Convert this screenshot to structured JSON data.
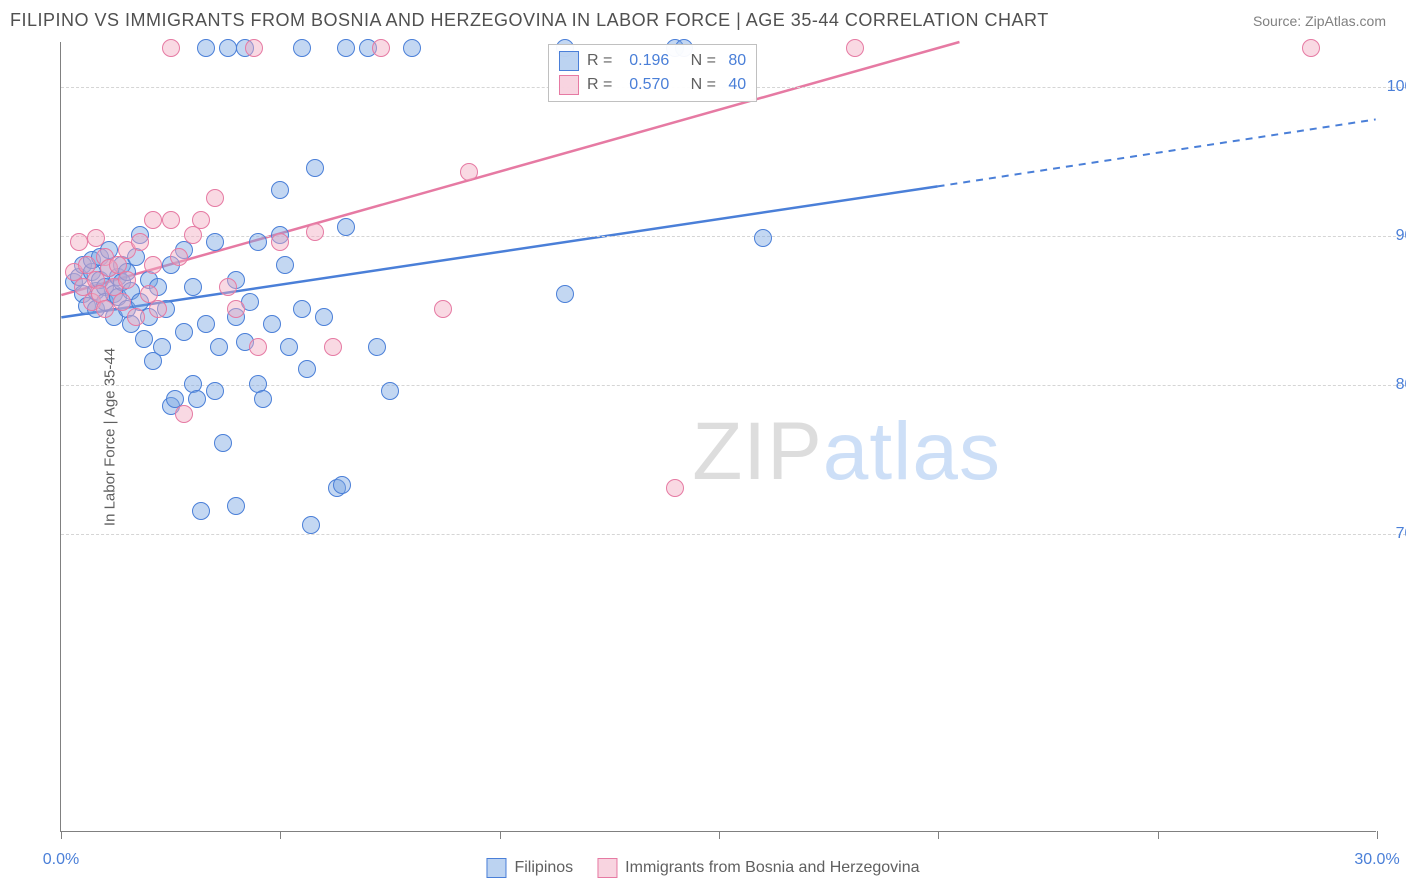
{
  "title": "FILIPINO VS IMMIGRANTS FROM BOSNIA AND HERZEGOVINA IN LABOR FORCE | AGE 35-44 CORRELATION CHART",
  "source": "Source: ZipAtlas.com",
  "y_axis_title": "In Labor Force | Age 35-44",
  "watermark": {
    "part1": "ZIP",
    "part2": "atlas"
  },
  "chart": {
    "type": "scatter",
    "xlim": [
      0,
      30
    ],
    "ylim": [
      50,
      103
    ],
    "xticks": [
      0,
      30
    ],
    "xtick_labels": [
      "0.0%",
      "30.0%"
    ],
    "xtick_minor": [
      5,
      10,
      15,
      20,
      25
    ],
    "yticks": [
      70,
      80,
      90,
      100
    ],
    "ytick_labels": [
      "70.0%",
      "80.0%",
      "90.0%",
      "100.0%"
    ],
    "grid_color": "#d5d5d5",
    "axis_color": "#808080",
    "background": "#ffffff"
  },
  "series": [
    {
      "key": "filipinos",
      "label": "Filipinos",
      "color_fill": "rgba(122,167,227,0.45)",
      "color_stroke": "#4a7fd8",
      "marker_size": 18,
      "R": "0.196",
      "N": "80",
      "trend": {
        "x1": 0,
        "y1": 84.5,
        "x2_solid": 20,
        "y2_solid": 93.3,
        "x2": 30,
        "y2": 97.8,
        "width": 2.5
      },
      "points": [
        [
          0.3,
          86.8
        ],
        [
          0.4,
          87.2
        ],
        [
          0.5,
          86.0
        ],
        [
          0.5,
          88.0
        ],
        [
          0.6,
          85.2
        ],
        [
          0.7,
          87.5
        ],
        [
          0.7,
          88.3
        ],
        [
          0.8,
          86.2
        ],
        [
          0.8,
          85.0
        ],
        [
          0.9,
          87.0
        ],
        [
          0.9,
          88.5
        ],
        [
          1.0,
          86.5
        ],
        [
          1.0,
          85.5
        ],
        [
          1.1,
          87.8
        ],
        [
          1.1,
          89.0
        ],
        [
          1.2,
          86.0
        ],
        [
          1.2,
          84.5
        ],
        [
          1.3,
          87.2
        ],
        [
          1.3,
          85.8
        ],
        [
          1.4,
          88.0
        ],
        [
          1.4,
          86.8
        ],
        [
          1.5,
          85.0
        ],
        [
          1.5,
          87.5
        ],
        [
          1.6,
          84.0
        ],
        [
          1.6,
          86.2
        ],
        [
          1.7,
          88.5
        ],
        [
          1.8,
          85.5
        ],
        [
          1.8,
          90.0
        ],
        [
          1.9,
          83.0
        ],
        [
          2.0,
          87.0
        ],
        [
          2.0,
          84.5
        ],
        [
          2.1,
          81.5
        ],
        [
          2.2,
          86.5
        ],
        [
          2.3,
          82.5
        ],
        [
          2.4,
          85.0
        ],
        [
          2.5,
          78.5
        ],
        [
          2.5,
          88.0
        ],
        [
          2.6,
          79.0
        ],
        [
          2.8,
          83.5
        ],
        [
          2.8,
          89.0
        ],
        [
          3.0,
          80.0
        ],
        [
          3.0,
          86.5
        ],
        [
          3.1,
          79.0
        ],
        [
          3.2,
          71.5
        ],
        [
          3.3,
          84.0
        ],
        [
          3.3,
          102.5
        ],
        [
          3.5,
          89.5
        ],
        [
          3.5,
          79.5
        ],
        [
          3.6,
          82.5
        ],
        [
          3.7,
          76.0
        ],
        [
          3.8,
          102.5
        ],
        [
          4.0,
          87.0
        ],
        [
          4.0,
          84.5
        ],
        [
          4.0,
          71.8
        ],
        [
          4.2,
          82.8
        ],
        [
          4.2,
          102.5
        ],
        [
          4.3,
          85.5
        ],
        [
          4.5,
          89.5
        ],
        [
          4.5,
          80.0
        ],
        [
          4.6,
          79.0
        ],
        [
          4.8,
          84.0
        ],
        [
          5.0,
          93.0
        ],
        [
          5.0,
          90.0
        ],
        [
          5.1,
          88.0
        ],
        [
          5.2,
          82.5
        ],
        [
          5.5,
          102.5
        ],
        [
          5.5,
          85.0
        ],
        [
          5.6,
          81.0
        ],
        [
          5.7,
          70.5
        ],
        [
          5.8,
          94.5
        ],
        [
          6.0,
          84.5
        ],
        [
          6.3,
          73.0
        ],
        [
          6.4,
          73.2
        ],
        [
          6.5,
          102.5
        ],
        [
          6.5,
          90.5
        ],
        [
          7.0,
          102.5
        ],
        [
          7.2,
          82.5
        ],
        [
          7.5,
          79.5
        ],
        [
          8.0,
          102.5
        ],
        [
          11.5,
          86.0
        ],
        [
          11.5,
          102.5
        ],
        [
          14.0,
          102.5
        ],
        [
          14.2,
          102.5
        ],
        [
          16.0,
          89.8
        ]
      ]
    },
    {
      "key": "bosnia",
      "label": "Immigrants from Bosnia and Herzegovina",
      "color_fill": "rgba(242,170,193,0.45)",
      "color_stroke": "#e67aa3",
      "marker_size": 18,
      "R": "0.570",
      "N": "40",
      "trend": {
        "x1": 0,
        "y1": 86.0,
        "x2_solid": 20.5,
        "y2_solid": 103.0,
        "x2": 20.5,
        "y2": 103.0,
        "width": 2.5
      },
      "points": [
        [
          0.3,
          87.5
        ],
        [
          0.4,
          89.5
        ],
        [
          0.5,
          86.5
        ],
        [
          0.6,
          88.0
        ],
        [
          0.7,
          85.5
        ],
        [
          0.8,
          87.0
        ],
        [
          0.8,
          89.8
        ],
        [
          0.9,
          86.0
        ],
        [
          1.0,
          88.5
        ],
        [
          1.0,
          85.0
        ],
        [
          1.1,
          87.8
        ],
        [
          1.2,
          86.5
        ],
        [
          1.3,
          88.0
        ],
        [
          1.4,
          85.5
        ],
        [
          1.5,
          89.0
        ],
        [
          1.5,
          87.0
        ],
        [
          1.7,
          84.5
        ],
        [
          1.8,
          89.5
        ],
        [
          2.0,
          86.0
        ],
        [
          2.1,
          91.0
        ],
        [
          2.1,
          88.0
        ],
        [
          2.2,
          85.0
        ],
        [
          2.5,
          91.0
        ],
        [
          2.5,
          102.5
        ],
        [
          2.7,
          88.5
        ],
        [
          2.8,
          78.0
        ],
        [
          3.0,
          90.0
        ],
        [
          3.2,
          91.0
        ],
        [
          3.5,
          92.5
        ],
        [
          3.8,
          86.5
        ],
        [
          4.0,
          85.0
        ],
        [
          4.4,
          102.5
        ],
        [
          4.5,
          82.5
        ],
        [
          5.0,
          89.5
        ],
        [
          5.8,
          90.2
        ],
        [
          6.2,
          82.5
        ],
        [
          7.3,
          102.5
        ],
        [
          8.7,
          85.0
        ],
        [
          9.3,
          94.2
        ],
        [
          14.0,
          73.0
        ],
        [
          18.1,
          102.5
        ],
        [
          28.5,
          102.5
        ]
      ]
    }
  ],
  "stats_legend": {
    "prefix_R": "R =  ",
    "prefix_N": "N = "
  }
}
